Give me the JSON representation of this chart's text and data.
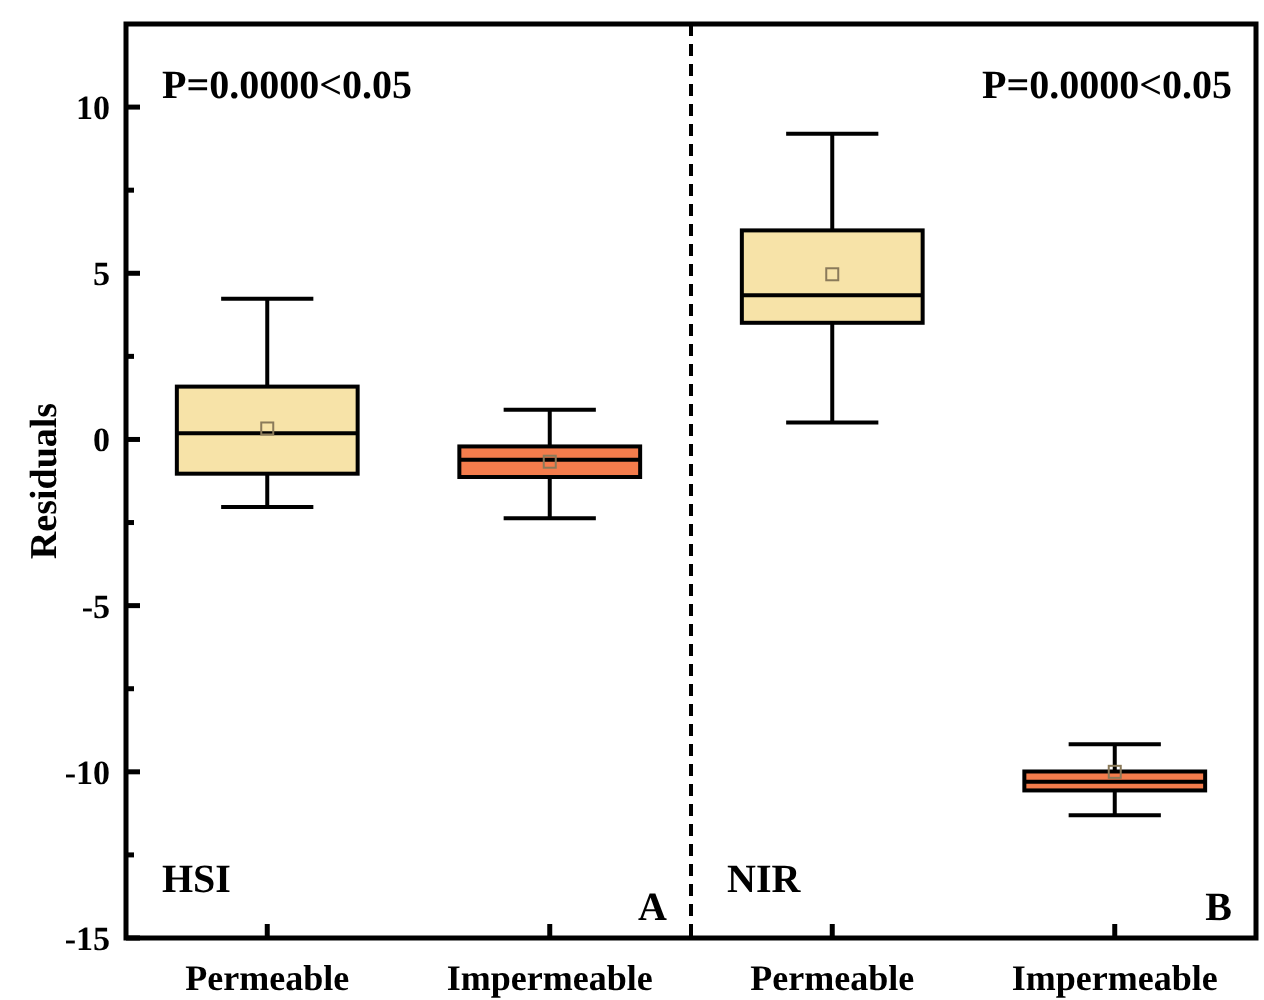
{
  "chart_data": {
    "type": "box",
    "ylabel": "Residuals",
    "categories": [
      "Permeable",
      "Impermeable",
      "Permeable",
      "Impermeable"
    ],
    "boxes": [
      {
        "low": -2.03,
        "q1": -1.03,
        "median": 0.19,
        "q3": 1.59,
        "high": 4.23,
        "mean": 0.33
      },
      {
        "low": -2.37,
        "q1": -1.13,
        "median": -0.61,
        "q3": -0.21,
        "high": 0.89,
        "mean": -0.67
      },
      {
        "low": 0.51,
        "q1": 3.51,
        "median": 4.34,
        "q3": 6.29,
        "high": 9.2,
        "mean": 4.97
      },
      {
        "low": -11.31,
        "q1": -10.56,
        "median": -10.3,
        "q3": -9.99,
        "high": -9.17,
        "mean": -10.0
      }
    ],
    "colors": [
      "#f7e3a8",
      "#f47c4c",
      "#f7e3a8",
      "#f47c4c"
    ],
    "ylim": [
      -15,
      12.5
    ],
    "yticks": [
      -15,
      {
        "value": -12.5,
        "label": null
      },
      -10,
      {
        "value": -7.5,
        "label": null
      },
      -5,
      {
        "value": -2.5,
        "label": null
      },
      0,
      {
        "value": 2.5,
        "label": null
      },
      5,
      {
        "value": 7.5,
        "label": null
      },
      10
    ],
    "grid": false,
    "annotations": [
      "P=0.0000<0.05",
      "P=0.0000<0.05",
      "HSI",
      "A",
      "NIR",
      "B"
    ]
  }
}
